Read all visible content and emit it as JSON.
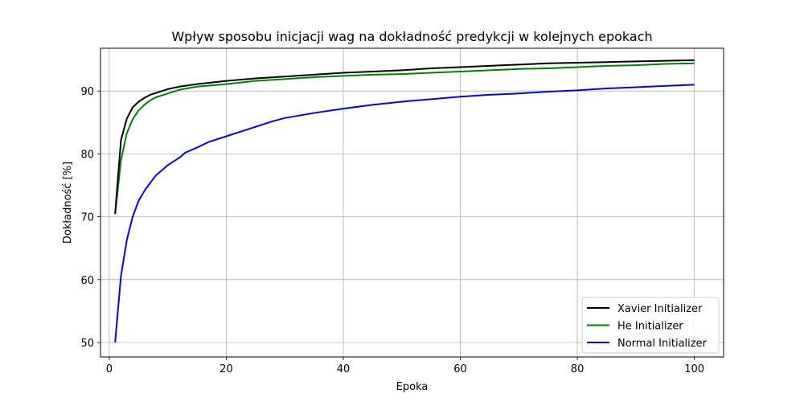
{
  "chart_data": {
    "type": "line",
    "title": "Wpływ sposobu inicjacji wag na dokładność predykcji w kolejnych epokach",
    "xlabel": "Epoka",
    "ylabel": "Dokładność [%]",
    "xlim": [
      -1.5,
      105
    ],
    "ylim": [
      47.7,
      96.8
    ],
    "xticks": [
      0,
      20,
      40,
      60,
      80,
      100
    ],
    "yticks": [
      50,
      60,
      70,
      80,
      90
    ],
    "grid": true,
    "legend_position": "lower-right",
    "series": [
      {
        "name": "Xavier Initializer",
        "color": "#000000",
        "points": [
          [
            1,
            70.5
          ],
          [
            2,
            82.2
          ],
          [
            3,
            85.6
          ],
          [
            4,
            87.4
          ],
          [
            5,
            88.3
          ],
          [
            6,
            88.9
          ],
          [
            7,
            89.4
          ],
          [
            8,
            89.7
          ],
          [
            10,
            90.3
          ],
          [
            12,
            90.7
          ],
          [
            15,
            91.1
          ],
          [
            20,
            91.6
          ],
          [
            25,
            92.0
          ],
          [
            30,
            92.3
          ],
          [
            35,
            92.6
          ],
          [
            40,
            92.9
          ],
          [
            45,
            93.1
          ],
          [
            50,
            93.3
          ],
          [
            55,
            93.6
          ],
          [
            60,
            93.8
          ],
          [
            65,
            94.0
          ],
          [
            70,
            94.2
          ],
          [
            75,
            94.4
          ],
          [
            80,
            94.5
          ],
          [
            85,
            94.6
          ],
          [
            90,
            94.7
          ],
          [
            95,
            94.8
          ],
          [
            100,
            94.9
          ]
        ]
      },
      {
        "name": "He Initializer",
        "color": "#008000",
        "points": [
          [
            1,
            70.4
          ],
          [
            2,
            79.0
          ],
          [
            3,
            83.3
          ],
          [
            4,
            85.5
          ],
          [
            5,
            86.9
          ],
          [
            6,
            87.8
          ],
          [
            7,
            88.5
          ],
          [
            8,
            89.0
          ],
          [
            10,
            89.6
          ],
          [
            12,
            90.2
          ],
          [
            15,
            90.7
          ],
          [
            20,
            91.1
          ],
          [
            25,
            91.6
          ],
          [
            30,
            91.9
          ],
          [
            35,
            92.2
          ],
          [
            40,
            92.4
          ],
          [
            45,
            92.6
          ],
          [
            50,
            92.7
          ],
          [
            55,
            92.9
          ],
          [
            60,
            93.1
          ],
          [
            65,
            93.3
          ],
          [
            70,
            93.5
          ],
          [
            75,
            93.6
          ],
          [
            80,
            93.8
          ],
          [
            85,
            94.0
          ],
          [
            90,
            94.1
          ],
          [
            95,
            94.3
          ],
          [
            100,
            94.4
          ]
        ]
      },
      {
        "name": "Normal Initializer",
        "color": "#0000ff",
        "points": [
          [
            1,
            50.0
          ],
          [
            2,
            60.6
          ],
          [
            3,
            66.3
          ],
          [
            4,
            70.0
          ],
          [
            5,
            72.5
          ],
          [
            6,
            74.1
          ],
          [
            7,
            75.4
          ],
          [
            8,
            76.6
          ],
          [
            10,
            78.2
          ],
          [
            12,
            79.4
          ],
          [
            13,
            80.2
          ],
          [
            15,
            81.0
          ],
          [
            17,
            81.9
          ],
          [
            20,
            82.8
          ],
          [
            23,
            83.7
          ],
          [
            25,
            84.3
          ],
          [
            28,
            85.2
          ],
          [
            30,
            85.7
          ],
          [
            35,
            86.5
          ],
          [
            40,
            87.2
          ],
          [
            45,
            87.8
          ],
          [
            50,
            88.3
          ],
          [
            55,
            88.7
          ],
          [
            60,
            89.1
          ],
          [
            65,
            89.4
          ],
          [
            70,
            89.6
          ],
          [
            75,
            89.9
          ],
          [
            80,
            90.1
          ],
          [
            85,
            90.4
          ],
          [
            90,
            90.6
          ],
          [
            95,
            90.8
          ],
          [
            100,
            91.0
          ]
        ]
      }
    ]
  }
}
